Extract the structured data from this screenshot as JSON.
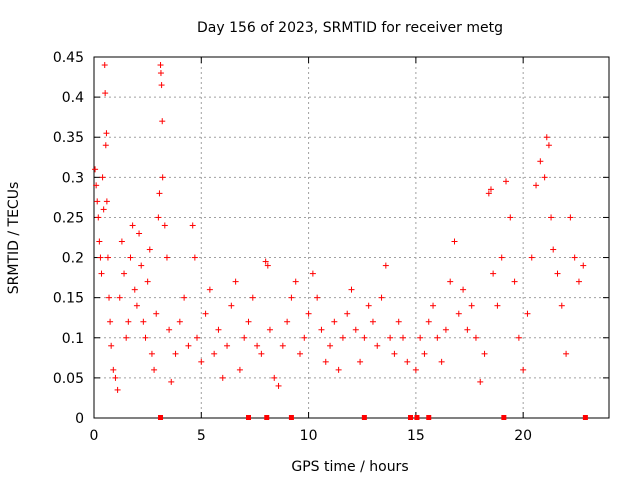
{
  "chart_data": {
    "type": "scatter",
    "title": "Day 156 of 2023, SRMTID for receiver metg",
    "xlabel": "GPS time / hours",
    "ylabel": "SRMTID / TECUs",
    "xlim": [
      0,
      24
    ],
    "ylim": [
      0,
      0.45
    ],
    "x_ticks": [
      0,
      5,
      10,
      15,
      20
    ],
    "x_tick_labels": [
      "0",
      "5",
      "10",
      "15",
      "20"
    ],
    "y_ticks": [
      0,
      0.05,
      0.1,
      0.15,
      0.2,
      0.25,
      0.3,
      0.35,
      0.4,
      0.45
    ],
    "y_tick_labels": [
      "0",
      "0.05",
      "0.1",
      "0.15",
      "0.2",
      "0.25",
      "0.3",
      "0.35",
      "0.4",
      "0.45"
    ],
    "grid": true,
    "marker": "+",
    "series": [
      {
        "name": "SRMTID",
        "color": "#ff0000",
        "points": [
          [
            0.05,
            0.31
          ],
          [
            0.1,
            0.29
          ],
          [
            0.15,
            0.27
          ],
          [
            0.2,
            0.25
          ],
          [
            0.25,
            0.22
          ],
          [
            0.3,
            0.2
          ],
          [
            0.35,
            0.18
          ],
          [
            0.4,
            0.3
          ],
          [
            0.45,
            0.26
          ],
          [
            0.5,
            0.44
          ],
          [
            0.52,
            0.405
          ],
          [
            0.55,
            0.34
          ],
          [
            0.58,
            0.355
          ],
          [
            0.6,
            0.27
          ],
          [
            0.65,
            0.2
          ],
          [
            0.7,
            0.15
          ],
          [
            0.75,
            0.12
          ],
          [
            0.8,
            0.09
          ],
          [
            0.9,
            0.06
          ],
          [
            1.0,
            0.05
          ],
          [
            1.1,
            0.035
          ],
          [
            1.2,
            0.15
          ],
          [
            1.3,
            0.22
          ],
          [
            1.4,
            0.18
          ],
          [
            1.5,
            0.1
          ],
          [
            1.6,
            0.12
          ],
          [
            1.7,
            0.2
          ],
          [
            1.8,
            0.24
          ],
          [
            1.9,
            0.16
          ],
          [
            2.0,
            0.14
          ],
          [
            2.1,
            0.23
          ],
          [
            2.2,
            0.19
          ],
          [
            2.3,
            0.12
          ],
          [
            2.4,
            0.1
          ],
          [
            2.5,
            0.17
          ],
          [
            2.6,
            0.21
          ],
          [
            2.7,
            0.08
          ],
          [
            2.8,
            0.06
          ],
          [
            2.9,
            0.13
          ],
          [
            3.0,
            0.25
          ],
          [
            3.05,
            0.28
          ],
          [
            3.1,
            0.44
          ],
          [
            3.12,
            0.43
          ],
          [
            3.15,
            0.415
          ],
          [
            3.18,
            0.37
          ],
          [
            3.2,
            0.3
          ],
          [
            3.3,
            0.24
          ],
          [
            3.4,
            0.2
          ],
          [
            3.5,
            0.11
          ],
          [
            3.6,
            0.045
          ],
          [
            3.8,
            0.08
          ],
          [
            4.0,
            0.12
          ],
          [
            4.2,
            0.15
          ],
          [
            4.4,
            0.09
          ],
          [
            4.6,
            0.24
          ],
          [
            4.7,
            0.2
          ],
          [
            4.8,
            0.1
          ],
          [
            5.0,
            0.07
          ],
          [
            5.2,
            0.13
          ],
          [
            5.4,
            0.16
          ],
          [
            5.6,
            0.08
          ],
          [
            5.8,
            0.11
          ],
          [
            6.0,
            0.05
          ],
          [
            6.2,
            0.09
          ],
          [
            6.4,
            0.14
          ],
          [
            6.6,
            0.17
          ],
          [
            6.8,
            0.06
          ],
          [
            7.0,
            0.1
          ],
          [
            7.2,
            0.12
          ],
          [
            7.4,
            0.15
          ],
          [
            7.6,
            0.09
          ],
          [
            7.8,
            0.08
          ],
          [
            8.0,
            0.195
          ],
          [
            8.1,
            0.19
          ],
          [
            8.2,
            0.11
          ],
          [
            8.4,
            0.05
          ],
          [
            8.6,
            0.04
          ],
          [
            8.8,
            0.09
          ],
          [
            9.0,
            0.12
          ],
          [
            9.2,
            0.15
          ],
          [
            9.4,
            0.17
          ],
          [
            9.6,
            0.08
          ],
          [
            9.8,
            0.1
          ],
          [
            10.0,
            0.13
          ],
          [
            10.2,
            0.18
          ],
          [
            10.4,
            0.15
          ],
          [
            10.6,
            0.11
          ],
          [
            10.8,
            0.07
          ],
          [
            11.0,
            0.09
          ],
          [
            11.2,
            0.12
          ],
          [
            11.4,
            0.06
          ],
          [
            11.6,
            0.1
          ],
          [
            11.8,
            0.13
          ],
          [
            12.0,
            0.16
          ],
          [
            12.2,
            0.11
          ],
          [
            12.4,
            0.07
          ],
          [
            12.6,
            0.1
          ],
          [
            12.8,
            0.14
          ],
          [
            13.0,
            0.12
          ],
          [
            13.2,
            0.09
          ],
          [
            13.4,
            0.15
          ],
          [
            13.6,
            0.19
          ],
          [
            13.8,
            0.1
          ],
          [
            14.0,
            0.08
          ],
          [
            14.2,
            0.12
          ],
          [
            14.4,
            0.1
          ],
          [
            14.6,
            0.07
          ],
          [
            15.0,
            0.06
          ],
          [
            15.2,
            0.1
          ],
          [
            15.4,
            0.08
          ],
          [
            15.6,
            0.12
          ],
          [
            15.8,
            0.14
          ],
          [
            16.0,
            0.1
          ],
          [
            16.2,
            0.07
          ],
          [
            16.4,
            0.11
          ],
          [
            16.6,
            0.17
          ],
          [
            16.8,
            0.22
          ],
          [
            17.0,
            0.13
          ],
          [
            17.2,
            0.16
          ],
          [
            17.4,
            0.11
          ],
          [
            17.6,
            0.14
          ],
          [
            17.8,
            0.1
          ],
          [
            18.0,
            0.045
          ],
          [
            18.2,
            0.08
          ],
          [
            18.4,
            0.28
          ],
          [
            18.5,
            0.285
          ],
          [
            18.6,
            0.18
          ],
          [
            18.8,
            0.14
          ],
          [
            19.0,
            0.2
          ],
          [
            19.2,
            0.295
          ],
          [
            19.4,
            0.25
          ],
          [
            19.6,
            0.17
          ],
          [
            19.8,
            0.1
          ],
          [
            20.0,
            0.06
          ],
          [
            20.2,
            0.13
          ],
          [
            20.4,
            0.2
          ],
          [
            20.6,
            0.29
          ],
          [
            20.8,
            0.32
          ],
          [
            21.0,
            0.3
          ],
          [
            21.1,
            0.35
          ],
          [
            21.2,
            0.34
          ],
          [
            21.3,
            0.25
          ],
          [
            21.4,
            0.21
          ],
          [
            21.6,
            0.18
          ],
          [
            21.8,
            0.14
          ],
          [
            22.0,
            0.08
          ],
          [
            22.2,
            0.25
          ],
          [
            22.4,
            0.2
          ],
          [
            22.6,
            0.17
          ],
          [
            22.8,
            0.19
          ]
        ],
        "zero_points": [
          3.1,
          7.2,
          8.05,
          9.2,
          12.6,
          14.75,
          15.05,
          15.6,
          19.1,
          22.9
        ]
      }
    ]
  }
}
